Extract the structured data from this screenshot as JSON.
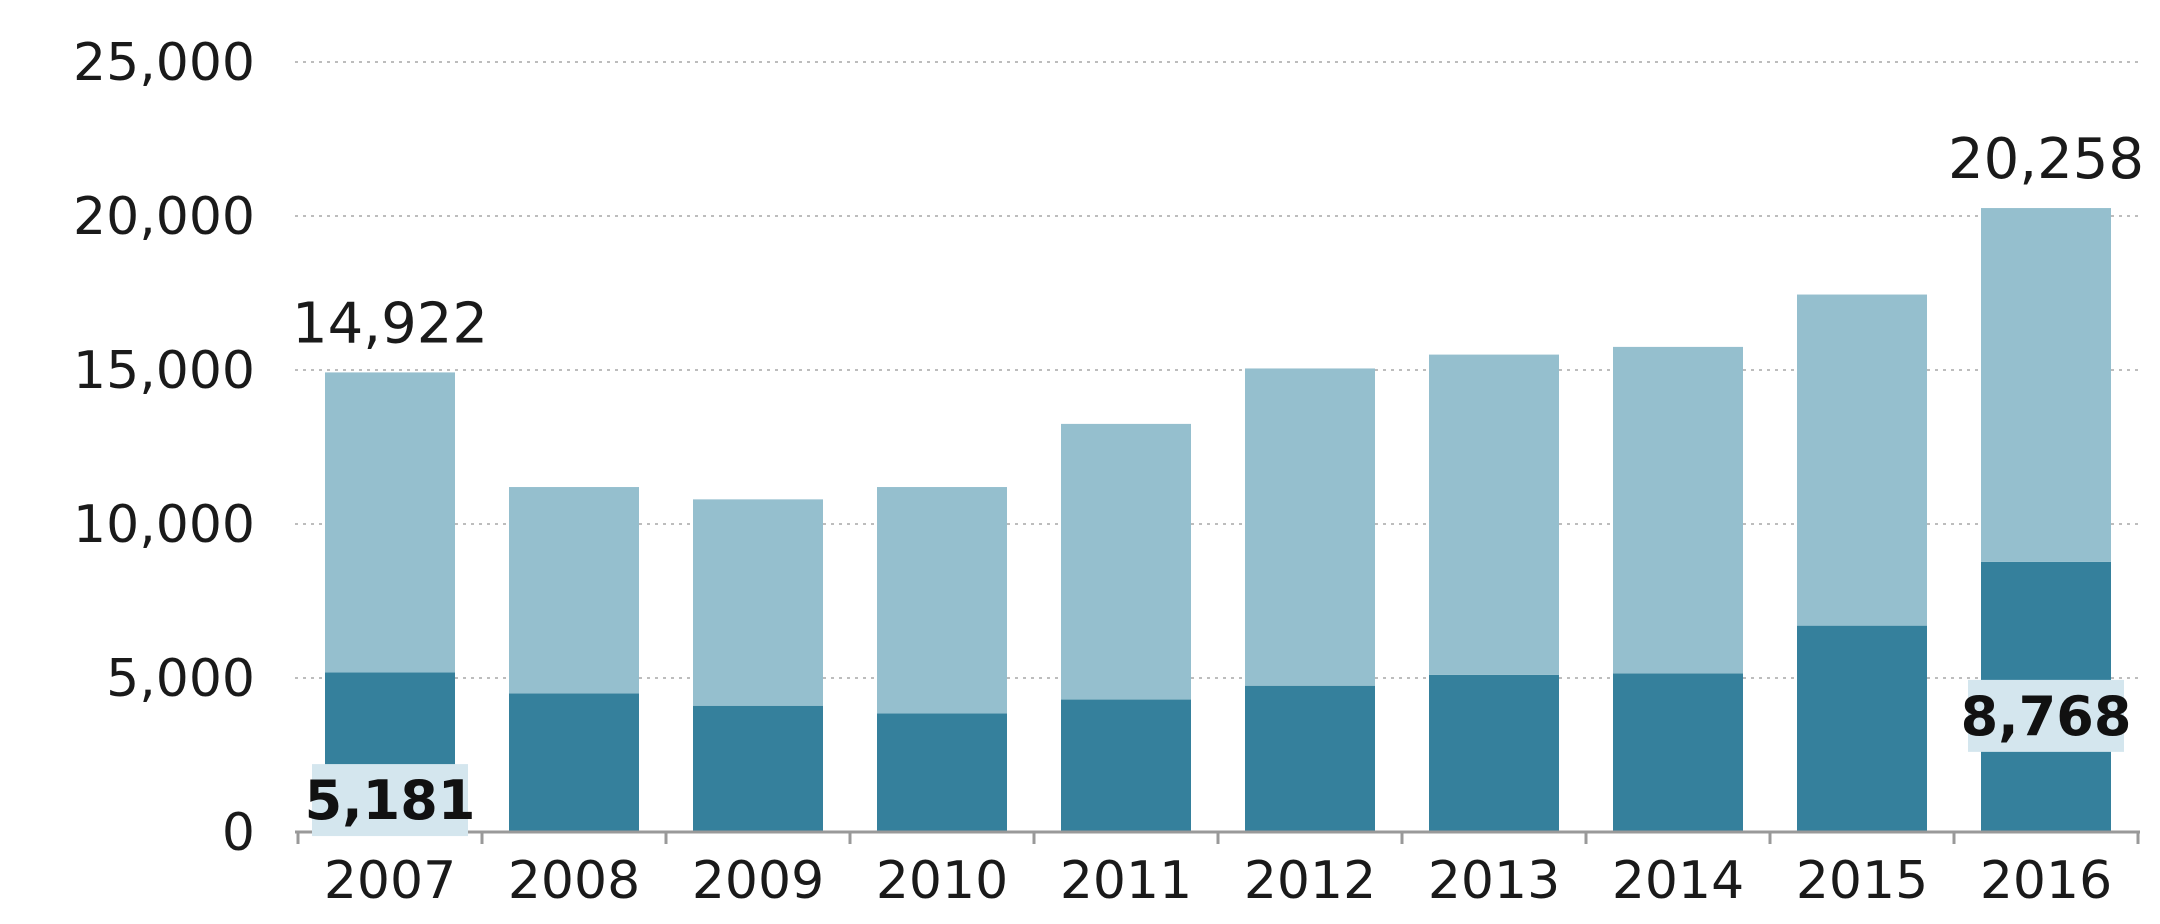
{
  "chart_data": {
    "type": "bar",
    "stacked": true,
    "categories": [
      "2007",
      "2008",
      "2009",
      "2010",
      "2011",
      "2012",
      "2013",
      "2014",
      "2015",
      "2016"
    ],
    "series": [
      {
        "values": [
          5181,
          4500,
          4100,
          3850,
          4300,
          4750,
          5100,
          5150,
          6700,
          8768
        ],
        "color": "#35809c"
      },
      {
        "values": [
          9741,
          6700,
          6700,
          7350,
          8950,
          10300,
          10400,
          10600,
          10750,
          11490
        ],
        "color": "#95bfce"
      }
    ],
    "totals": [
      14922,
      11200,
      10800,
      11200,
      13250,
      15050,
      15500,
      15750,
      17450,
      20258
    ],
    "y_ticks": [
      "0",
      "5,000",
      "10,000",
      "15,000",
      "20,000",
      "25,000"
    ],
    "ylim": [
      0,
      25000
    ],
    "grid": true,
    "annotations": [
      {
        "category": "2007",
        "kind": "total",
        "text": "14,922"
      },
      {
        "category": "2007",
        "kind": "inner",
        "text": "5,181"
      },
      {
        "category": "2016",
        "kind": "total",
        "text": "20,258"
      },
      {
        "category": "2016",
        "kind": "inner",
        "text": "8,768"
      }
    ],
    "colors": {
      "grid": "#bdbdbd",
      "axis": "#999999",
      "label_bg": "#d4e6ee"
    }
  }
}
